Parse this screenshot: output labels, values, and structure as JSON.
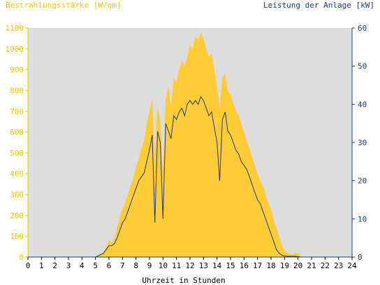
{
  "chart_data": {
    "type": "area",
    "left_axis_title": "Bestrahlungsstärke [W/qm]",
    "right_axis_title": "Leistung der Anlage [kW]",
    "xlabel": "Uhrzeit in Stunden",
    "x_ticks": [
      "0",
      "1",
      "2",
      "3",
      "4",
      "5",
      "6",
      "7",
      "8",
      "9",
      "10",
      "11",
      "12",
      "13",
      "14",
      "15",
      "16",
      "17",
      "18",
      "19",
      "20",
      "21",
      "22",
      "23",
      "24"
    ],
    "y_left_ticks": [
      "0",
      "100",
      "200",
      "300",
      "400",
      "500",
      "600",
      "700",
      "800",
      "900",
      "1000",
      "1100"
    ],
    "y_right_ticks": [
      "0",
      "10",
      "20",
      "30",
      "40",
      "50",
      "60"
    ],
    "xlim": [
      0,
      24
    ],
    "ylim_left": [
      0,
      1100
    ],
    "ylim_right": [
      0,
      60
    ],
    "grid": false,
    "colors": {
      "irradiance": "#ffcc33",
      "power": "#1f3a78",
      "plot_bg": "#dcdcdc",
      "left_axis": "#f5c400",
      "right_axis": "#1f3a78"
    },
    "series": [
      {
        "axis": "left",
        "style": "area",
        "x": [
          0,
          5.0,
          5.3,
          5.6,
          5.8,
          6.0,
          6.2,
          6.4,
          6.6,
          6.8,
          7.0,
          7.2,
          7.4,
          7.6,
          7.8,
          8.0,
          8.2,
          8.4,
          8.6,
          8.8,
          9.0,
          9.2,
          9.4,
          9.6,
          9.8,
          10.0,
          10.2,
          10.4,
          10.6,
          10.8,
          11.0,
          11.2,
          11.4,
          11.6,
          11.8,
          12.0,
          12.2,
          12.4,
          12.6,
          12.8,
          13.0,
          13.2,
          13.4,
          13.6,
          13.8,
          14.0,
          14.2,
          14.4,
          14.6,
          14.8,
          15.0,
          15.2,
          15.4,
          15.6,
          15.8,
          16.0,
          16.2,
          16.4,
          16.6,
          16.8,
          17.0,
          17.2,
          17.4,
          17.6,
          17.8,
          18.0,
          18.2,
          18.4,
          18.6,
          18.8,
          19.0,
          19.2,
          19.4,
          19.6,
          19.8,
          20.0,
          20.2,
          20.4,
          24
        ],
        "y": [
          0,
          0,
          10,
          25,
          50,
          80,
          70,
          90,
          140,
          190,
          230,
          260,
          300,
          340,
          380,
          430,
          470,
          520,
          560,
          640,
          700,
          760,
          480,
          720,
          650,
          400,
          760,
          820,
          720,
          860,
          840,
          900,
          940,
          920,
          960,
          1020,
          1000,
          1060,
          1040,
          1080,
          1050,
          1000,
          960,
          980,
          900,
          820,
          720,
          860,
          880,
          800,
          780,
          740,
          700,
          680,
          640,
          600,
          560,
          520,
          480,
          440,
          400,
          370,
          340,
          300,
          260,
          230,
          180,
          140,
          100,
          60,
          30,
          20,
          15,
          10,
          20,
          15,
          5,
          0,
          0
        ]
      },
      {
        "axis": "right",
        "style": "line",
        "x": [
          0,
          5.0,
          5.3,
          5.6,
          5.8,
          6.0,
          6.2,
          6.4,
          6.6,
          6.8,
          7.0,
          7.2,
          7.4,
          7.6,
          7.8,
          8.0,
          8.2,
          8.4,
          8.6,
          8.8,
          9.0,
          9.2,
          9.4,
          9.6,
          9.8,
          10.0,
          10.2,
          10.4,
          10.6,
          10.8,
          11.0,
          11.2,
          11.4,
          11.6,
          11.8,
          12.0,
          12.2,
          12.4,
          12.6,
          12.8,
          13.0,
          13.2,
          13.4,
          13.6,
          13.8,
          14.0,
          14.2,
          14.4,
          14.6,
          14.8,
          15.0,
          15.2,
          15.4,
          15.6,
          15.8,
          16.0,
          16.2,
          16.4,
          16.6,
          16.8,
          17.0,
          17.2,
          17.4,
          17.6,
          17.8,
          18.0,
          18.2,
          18.4,
          18.6,
          18.8,
          19.0,
          19.2,
          19.4,
          19.6,
          19.8,
          20.0,
          20.2,
          20.4,
          24
        ],
        "y": [
          0,
          0,
          0.5,
          1,
          2,
          3,
          3,
          3.5,
          5,
          7,
          9,
          10,
          12,
          14,
          16,
          18,
          20,
          21,
          22,
          25,
          28,
          32,
          9,
          33,
          30,
          10,
          35,
          33,
          31,
          37,
          36,
          38,
          39,
          37,
          40,
          41,
          40,
          41,
          40,
          42,
          41,
          39,
          37,
          38,
          34,
          30,
          20,
          36,
          38,
          33,
          32,
          30,
          28,
          27,
          25,
          24,
          23,
          21,
          19,
          17,
          15,
          14,
          12,
          10,
          8,
          6,
          4,
          2,
          1,
          0.5,
          0.3,
          0.2,
          0.2,
          0.2,
          0.2,
          0.1,
          0,
          0,
          0
        ]
      }
    ]
  }
}
